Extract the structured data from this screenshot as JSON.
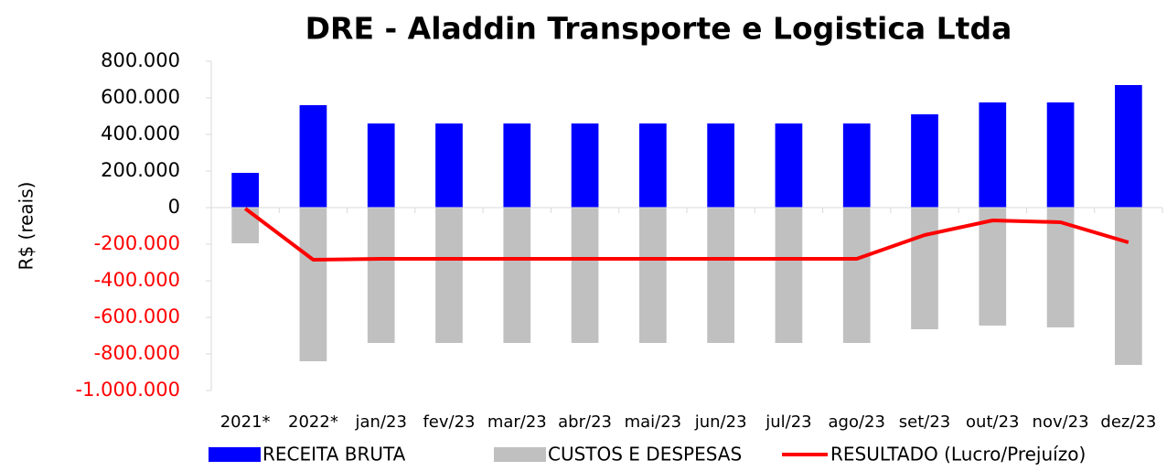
{
  "chart_data": {
    "type": "bar_line",
    "title": "DRE - Aladdin Transporte e Logistica Ltda",
    "y_label": "R$ (reais)",
    "categories": [
      "2021*",
      "2022*",
      "jan/23",
      "fev/23",
      "mar/23",
      "abr/23",
      "mai/23",
      "jun/23",
      "jul/23",
      "ago/23",
      "set/23",
      "out/23",
      "nov/23",
      "dez/23"
    ],
    "series": [
      {
        "name": "RECEITA BRUTA",
        "type": "bar",
        "color": "#0000ff",
        "values": [
          190000,
          560000,
          460000,
          460000,
          460000,
          460000,
          460000,
          460000,
          460000,
          460000,
          510000,
          575000,
          575000,
          670000
        ]
      },
      {
        "name": "CUSTOS E DESPESAS",
        "type": "bar",
        "color": "#c0c0c0",
        "values": [
          -195000,
          -840000,
          -740000,
          -740000,
          -740000,
          -740000,
          -740000,
          -740000,
          -740000,
          -740000,
          -665000,
          -645000,
          -655000,
          -860000
        ]
      },
      {
        "name": "RESULTADO (Lucro/Prejuízo)",
        "type": "line",
        "color": "#ff0000",
        "values": [
          -5000,
          -285000,
          -280000,
          -280000,
          -280000,
          -280000,
          -280000,
          -280000,
          -280000,
          -280000,
          -150000,
          -70000,
          -80000,
          -190000
        ]
      }
    ],
    "ylim": [
      -1000000,
      800000
    ],
    "yticks": [
      {
        "value": -1000000,
        "label": "-1.000.000"
      },
      {
        "value": -800000,
        "label": "-800.000"
      },
      {
        "value": -600000,
        "label": "-600.000"
      },
      {
        "value": -400000,
        "label": "-400.000"
      },
      {
        "value": -200000,
        "label": "-200.000"
      },
      0,
      {
        "value": 200000,
        "label": "200.000"
      },
      {
        "value": 400000,
        "label": "400.000"
      },
      {
        "value": 600000,
        "label": "600.000"
      },
      {
        "value": 800000,
        "label": "800.000"
      }
    ],
    "negative_tick_color": "#ff0000"
  }
}
